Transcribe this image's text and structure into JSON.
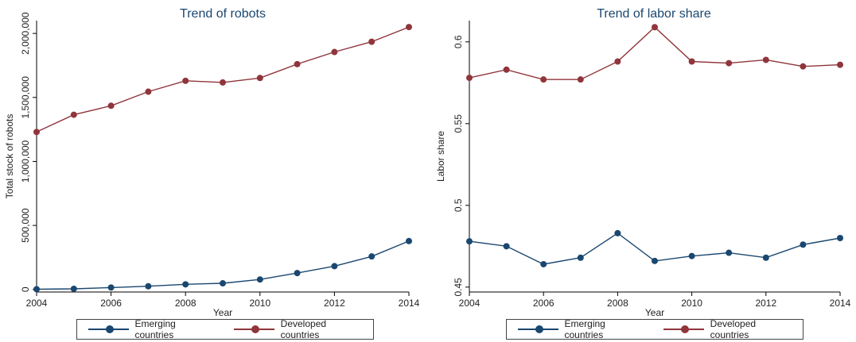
{
  "colors": {
    "emerging": "#1a476f",
    "developed": "#90353b",
    "title": "#1a476f",
    "axis": "#000000"
  },
  "chart_data": [
    {
      "type": "line",
      "title": "Trend of robots",
      "xlabel": "Year",
      "ylabel": "Total stock of robots",
      "x": [
        2004,
        2005,
        2006,
        2007,
        2008,
        2009,
        2010,
        2011,
        2012,
        2013,
        2014
      ],
      "xticks": [
        2004,
        2006,
        2008,
        2010,
        2012,
        2014
      ],
      "xtick_labels": [
        "2004",
        "2006",
        "2008",
        "2010",
        "2012",
        "2014"
      ],
      "yticks": [
        0,
        500000,
        1000000,
        1500000,
        2000000
      ],
      "ytick_labels": [
        "0",
        "500,000",
        "1,000,000",
        "1,500,000",
        "2,000,000"
      ],
      "xlim": [
        2004,
        2014
      ],
      "ylim": [
        -20000,
        2100000
      ],
      "grid": false,
      "legend": "bottom",
      "series": [
        {
          "name": "Emerging countries",
          "color_key": "emerging",
          "values": [
            2000,
            5000,
            15000,
            25000,
            40000,
            48000,
            78000,
            128000,
            182000,
            258000,
            378000
          ]
        },
        {
          "name": "Developed countries",
          "color_key": "developed",
          "values": [
            1230000,
            1365000,
            1435000,
            1545000,
            1630000,
            1617000,
            1652000,
            1760000,
            1855000,
            1935000,
            2050000
          ]
        }
      ]
    },
    {
      "type": "line",
      "title": "Trend of labor share",
      "xlabel": "Year",
      "ylabel": "Labor share",
      "x": [
        2004,
        2005,
        2006,
        2007,
        2008,
        2009,
        2010,
        2011,
        2012,
        2013,
        2014
      ],
      "xticks": [
        2004,
        2006,
        2008,
        2010,
        2012,
        2014
      ],
      "xtick_labels": [
        "2004",
        "2006",
        "2008",
        "2010",
        "2012",
        "2014"
      ],
      "yticks": [
        0.45,
        0.5,
        0.55,
        0.6
      ],
      "ytick_labels": [
        "0.45",
        "0.5",
        "0.55",
        "0.6"
      ],
      "xlim": [
        2004,
        2014
      ],
      "ylim": [
        0.447,
        0.613
      ],
      "grid": false,
      "legend": "bottom",
      "series": [
        {
          "name": "Emerging countries",
          "color_key": "emerging",
          "values": [
            0.478,
            0.475,
            0.464,
            0.468,
            0.483,
            0.466,
            0.469,
            0.471,
            0.468,
            0.476,
            0.48
          ]
        },
        {
          "name": "Developed countries",
          "color_key": "developed",
          "values": [
            0.578,
            0.583,
            0.577,
            0.577,
            0.588,
            0.609,
            0.588,
            0.587,
            0.589,
            0.585,
            0.586
          ]
        }
      ]
    }
  ]
}
